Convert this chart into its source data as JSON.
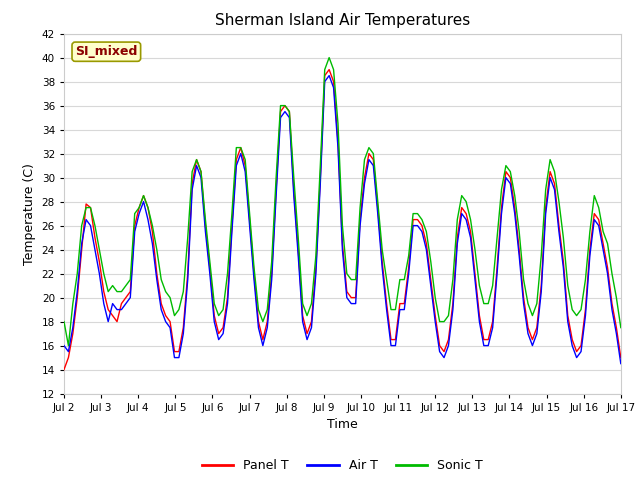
{
  "title": "Sherman Island Air Temperatures",
  "xlabel": "Time",
  "ylabel": "Temperature (C)",
  "ylim": [
    12,
    42
  ],
  "yticks": [
    12,
    14,
    16,
    18,
    20,
    22,
    24,
    26,
    28,
    30,
    32,
    34,
    36,
    38,
    40,
    42
  ],
  "xtick_labels": [
    "Jul 2",
    "Jul 3",
    "Jul 4",
    "Jul 5",
    "Jul 6",
    "Jul 7",
    "Jul 8",
    "Jul 9",
    "Jul 10",
    "Jul 11",
    "Jul 12",
    "Jul 13",
    "Jul 14",
    "Jul 15",
    "Jul 16",
    "Jul 17"
  ],
  "legend_labels": [
    "Panel T",
    "Air T",
    "Sonic T"
  ],
  "legend_colors": [
    "#ff0000",
    "#0000ff",
    "#00bb00"
  ],
  "plot_bg_color": "#ffffff",
  "fig_bg_color": "#ffffff",
  "grid_color": "#d8d8d8",
  "annotation_text": "SI_mixed",
  "annotation_color": "#8b0000",
  "annotation_bg": "#ffffcc",
  "annotation_edge": "#999900",
  "panel_T": [
    14.0,
    15.0,
    17.0,
    20.0,
    24.0,
    27.8,
    27.5,
    25.0,
    23.0,
    20.5,
    19.0,
    18.5,
    18.0,
    19.5,
    20.0,
    20.5,
    26.0,
    27.5,
    28.5,
    27.5,
    25.5,
    22.0,
    19.5,
    18.5,
    18.0,
    15.5,
    15.5,
    17.5,
    22.0,
    29.5,
    31.5,
    30.5,
    26.0,
    22.5,
    18.5,
    17.0,
    17.5,
    20.0,
    26.0,
    31.5,
    32.5,
    31.0,
    26.5,
    22.0,
    18.0,
    16.5,
    18.0,
    22.0,
    29.0,
    35.5,
    36.0,
    35.5,
    29.0,
    24.0,
    18.5,
    17.0,
    18.0,
    22.5,
    30.0,
    38.5,
    39.0,
    38.0,
    33.0,
    24.5,
    20.5,
    20.0,
    20.0,
    26.5,
    30.0,
    32.0,
    31.5,
    27.5,
    23.0,
    19.5,
    16.5,
    16.5,
    19.5,
    19.5,
    22.5,
    26.5,
    26.5,
    26.0,
    24.5,
    21.5,
    18.5,
    16.0,
    15.5,
    16.5,
    19.5,
    25.0,
    27.5,
    27.0,
    25.5,
    22.0,
    18.5,
    16.5,
    16.5,
    18.0,
    22.5,
    27.5,
    30.5,
    30.0,
    27.5,
    24.0,
    20.0,
    17.5,
    16.5,
    17.5,
    21.0,
    27.5,
    30.5,
    29.5,
    26.0,
    23.0,
    18.5,
    16.5,
    15.5,
    16.0,
    19.0,
    24.0,
    27.0,
    26.5,
    24.5,
    22.5,
    19.5,
    17.5,
    15.0
  ],
  "air_T": [
    16.0,
    15.5,
    17.5,
    20.5,
    24.5,
    26.5,
    26.0,
    24.0,
    22.0,
    19.5,
    18.0,
    19.5,
    19.0,
    19.0,
    19.5,
    20.0,
    25.5,
    27.0,
    28.0,
    26.5,
    24.5,
    21.5,
    19.0,
    18.0,
    17.5,
    15.0,
    15.0,
    17.0,
    21.5,
    29.0,
    31.0,
    30.0,
    25.5,
    22.0,
    18.0,
    16.5,
    17.0,
    19.5,
    25.5,
    31.0,
    32.0,
    30.5,
    26.0,
    21.5,
    17.5,
    16.0,
    17.5,
    21.5,
    28.5,
    35.0,
    35.5,
    35.0,
    28.5,
    23.5,
    18.0,
    16.5,
    17.5,
    22.0,
    29.5,
    38.0,
    38.5,
    37.5,
    32.5,
    24.0,
    20.0,
    19.5,
    19.5,
    26.0,
    29.5,
    31.5,
    31.0,
    27.0,
    22.5,
    19.0,
    16.0,
    16.0,
    19.0,
    19.0,
    22.0,
    26.0,
    26.0,
    25.5,
    24.0,
    21.0,
    18.0,
    15.5,
    15.0,
    16.0,
    19.0,
    24.5,
    27.0,
    26.5,
    25.0,
    21.5,
    18.0,
    16.0,
    16.0,
    17.5,
    22.0,
    27.0,
    30.0,
    29.5,
    27.0,
    23.5,
    19.5,
    17.0,
    16.0,
    17.0,
    20.5,
    27.0,
    30.0,
    29.0,
    25.5,
    22.5,
    18.0,
    16.0,
    15.0,
    15.5,
    18.5,
    23.5,
    26.5,
    26.0,
    24.0,
    22.0,
    19.0,
    17.0,
    14.5
  ],
  "sonic_T": [
    18.0,
    16.0,
    19.5,
    22.0,
    26.0,
    27.5,
    27.5,
    26.0,
    24.0,
    22.0,
    20.5,
    21.0,
    20.5,
    20.5,
    21.0,
    21.5,
    27.0,
    27.5,
    28.5,
    27.5,
    26.0,
    24.0,
    21.5,
    20.5,
    20.0,
    18.5,
    19.0,
    20.5,
    25.0,
    30.5,
    31.5,
    30.5,
    26.5,
    23.0,
    19.5,
    18.5,
    19.0,
    22.0,
    27.0,
    32.5,
    32.5,
    31.5,
    27.0,
    22.5,
    19.0,
    18.0,
    19.0,
    23.0,
    30.0,
    36.0,
    36.0,
    35.5,
    30.0,
    25.0,
    19.5,
    18.5,
    19.5,
    23.5,
    31.0,
    39.0,
    40.0,
    39.0,
    34.5,
    26.0,
    22.0,
    21.5,
    21.5,
    27.5,
    31.5,
    32.5,
    32.0,
    28.0,
    24.0,
    21.5,
    19.0,
    19.0,
    21.5,
    21.5,
    23.5,
    27.0,
    27.0,
    26.5,
    25.5,
    23.0,
    20.0,
    18.0,
    18.0,
    18.5,
    21.5,
    26.5,
    28.5,
    28.0,
    26.5,
    24.0,
    21.0,
    19.5,
    19.5,
    21.0,
    25.0,
    29.0,
    31.0,
    30.5,
    28.5,
    25.5,
    21.5,
    19.5,
    18.5,
    19.5,
    23.5,
    29.0,
    31.5,
    30.5,
    28.0,
    25.0,
    21.0,
    19.0,
    18.5,
    19.0,
    21.5,
    25.5,
    28.5,
    27.5,
    25.5,
    24.5,
    22.0,
    20.0,
    17.5
  ]
}
